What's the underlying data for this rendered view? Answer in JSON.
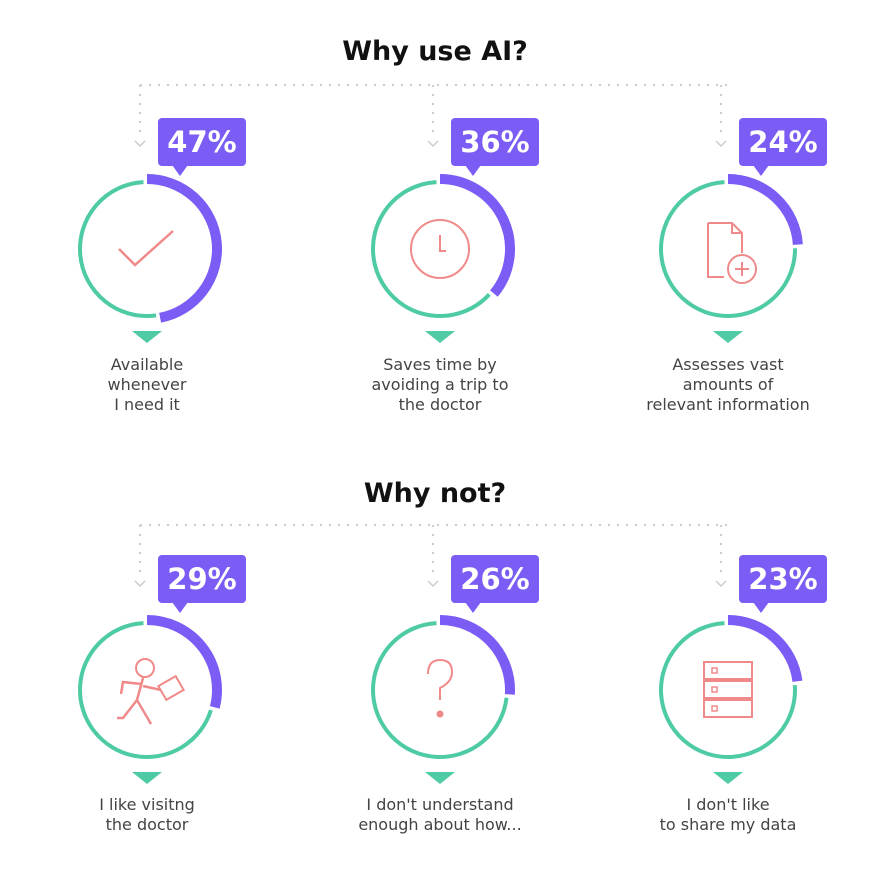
{
  "sections": [
    {
      "title": "Why use AI?",
      "items": [
        {
          "value": 47,
          "label_lines": [
            "Available",
            "whenever",
            "I need it"
          ],
          "icon": "checkmark-icon"
        },
        {
          "value": 36,
          "label_lines": [
            "Saves time by",
            "avoiding a trip to",
            "the doctor"
          ],
          "icon": "clock-icon"
        },
        {
          "value": 24,
          "label_lines": [
            "Assesses vast",
            "amounts of",
            "relevant information"
          ],
          "icon": "document-plus-icon"
        }
      ]
    },
    {
      "title": "Why not?",
      "items": [
        {
          "value": 29,
          "label_lines": [
            "I like visitng",
            "the doctor"
          ],
          "icon": "running-person-icon"
        },
        {
          "value": 26,
          "label_lines": [
            "I don't understand",
            "enough about how..."
          ],
          "icon": "question-mark-icon"
        },
        {
          "value": 23,
          "label_lines": [
            "I don't like",
            "to share my data"
          ],
          "icon": "server-icon"
        }
      ]
    }
  ],
  "colors": {
    "purple": "#7b5cf5",
    "teal": "#4ecba5",
    "icon": "#f08a8a",
    "connector": "#cccccc"
  },
  "chart_data": {
    "type": "pie",
    "subtype": "donut-gauges",
    "groups": [
      {
        "title": "Why use AI?",
        "categories": [
          "Available whenever I need it",
          "Saves time by avoiding a trip to the doctor",
          "Assesses vast amounts of relevant information"
        ],
        "values": [
          47,
          36,
          24
        ],
        "unit": "%"
      },
      {
        "title": "Why not?",
        "categories": [
          "I like visitng the doctor",
          "I don't understand enough about how...",
          "I don't like to share my data"
        ],
        "values": [
          29,
          26,
          23
        ],
        "unit": "%"
      }
    ]
  }
}
